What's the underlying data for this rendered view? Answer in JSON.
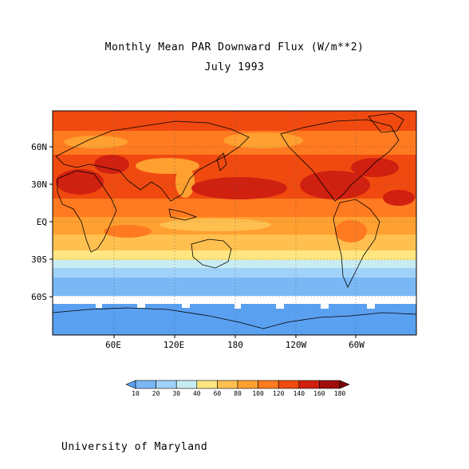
{
  "title": "Monthly Mean PAR Downward Flux (W/m**2)",
  "subtitle": "July 1993",
  "footer": "University of Maryland",
  "map": {
    "projection": "latitude-longitude",
    "lat_ticks": [
      "60N",
      "30N",
      "EQ",
      "30S",
      "60S"
    ],
    "lon_ticks": [
      "60E",
      "120E",
      "180",
      "120W",
      "60W"
    ],
    "gridlines": "dotted"
  },
  "colorbar": {
    "levels": [
      "10",
      "20",
      "30",
      "40",
      "60",
      "80",
      "100",
      "120",
      "140",
      "160",
      "180"
    ],
    "colors": [
      "#5aa0f0",
      "#7ab8f5",
      "#a0d2f8",
      "#c8ecf2",
      "#ffe680",
      "#ffc050",
      "#ffa030",
      "#ff7a20",
      "#f04a10",
      "#d02010",
      "#a00c0c",
      "#780408"
    ]
  }
}
